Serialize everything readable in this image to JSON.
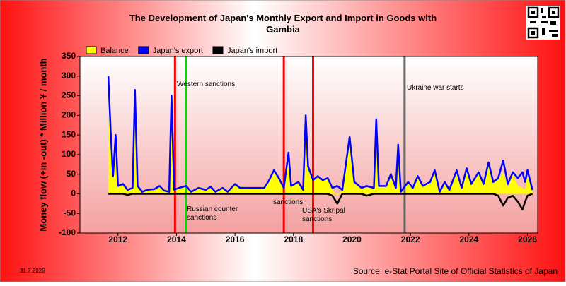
{
  "chart_data": {
    "type": "line",
    "title": "The Development of Japan's Monthly Export and Import in Goods with Gambia",
    "ylabel": "Money flow (+in -out) * Million ¥ / month",
    "date": "31.7.2026",
    "source": "Source: e-Stat Portal Site of Official Statistics of Japan",
    "xlim": [
      2010.7,
      2026.35
    ],
    "xticks": [
      2012,
      2014,
      2016,
      2018,
      2020,
      2022,
      2024,
      2026
    ],
    "ylim": [
      -100,
      350
    ],
    "yticks": [
      -100,
      -50,
      0,
      50,
      100,
      150,
      200,
      250,
      300,
      350
    ],
    "legend": "top-left",
    "x": [
      2011.67,
      2011.75,
      2011.83,
      2011.92,
      2012.0,
      2012.17,
      2012.33,
      2012.5,
      2012.58,
      2012.67,
      2012.83,
      2013.0,
      2013.25,
      2013.42,
      2013.58,
      2013.75,
      2013.83,
      2013.92,
      2014.08,
      2014.33,
      2014.5,
      2014.75,
      2015.0,
      2015.17,
      2015.33,
      2015.58,
      2015.75,
      2016.0,
      2016.17,
      2017.0,
      2017.17,
      2017.33,
      2017.5,
      2017.67,
      2017.83,
      2017.92,
      2018.17,
      2018.33,
      2018.42,
      2018.5,
      2018.67,
      2018.83,
      2019.0,
      2019.17,
      2019.33,
      2019.5,
      2019.67,
      2019.92,
      2020.08,
      2020.33,
      2020.5,
      2020.75,
      2020.83,
      2020.92,
      2021.17,
      2021.33,
      2021.5,
      2021.58,
      2021.67,
      2021.92,
      2022.08,
      2022.25,
      2022.42,
      2022.67,
      2022.83,
      2023.0,
      2023.17,
      2023.33,
      2023.58,
      2023.75,
      2023.92,
      2024.08,
      2024.33,
      2024.5,
      2024.67,
      2024.83,
      2025.0,
      2025.17,
      2025.33,
      2025.5,
      2025.67,
      2025.83,
      2025.92,
      2026.0,
      2026.17
    ],
    "series": [
      {
        "name": "Balance",
        "color": "#ffff00",
        "values": [
          300,
          160,
          45,
          150,
          20,
          25,
          7,
          15,
          265,
          20,
          5,
          10,
          12,
          20,
          8,
          5,
          250,
          10,
          15,
          20,
          5,
          15,
          10,
          18,
          5,
          15,
          5,
          25,
          15,
          15,
          35,
          60,
          40,
          15,
          105,
          20,
          30,
          10,
          200,
          70,
          35,
          45,
          35,
          40,
          10,
          -5,
          10,
          145,
          30,
          15,
          15,
          15,
          190,
          20,
          20,
          50,
          15,
          125,
          5,
          30,
          15,
          45,
          20,
          30,
          60,
          5,
          30,
          10,
          60,
          15,
          65,
          25,
          55,
          25,
          80,
          30,
          35,
          55,
          15,
          50,
          20,
          15,
          10,
          55,
          10
        ]
      },
      {
        "name": "Japan's export",
        "color": "#0000ff",
        "values": [
          300,
          160,
          45,
          150,
          20,
          25,
          10,
          15,
          265,
          20,
          5,
          10,
          12,
          20,
          8,
          5,
          250,
          10,
          15,
          20,
          5,
          15,
          10,
          18,
          5,
          15,
          5,
          25,
          15,
          15,
          35,
          60,
          40,
          15,
          105,
          20,
          30,
          10,
          200,
          70,
          35,
          45,
          35,
          40,
          15,
          20,
          10,
          145,
          30,
          15,
          20,
          15,
          190,
          20,
          20,
          50,
          15,
          125,
          5,
          30,
          15,
          45,
          20,
          30,
          60,
          5,
          30,
          10,
          60,
          15,
          65,
          25,
          55,
          25,
          80,
          30,
          40,
          85,
          25,
          55,
          40,
          55,
          30,
          60,
          10
        ]
      },
      {
        "name": "Japan's import",
        "color": "#000000",
        "values": [
          0,
          0,
          0,
          0,
          0,
          0,
          -3,
          0,
          0,
          0,
          0,
          0,
          0,
          0,
          0,
          0,
          0,
          0,
          0,
          0,
          0,
          0,
          0,
          0,
          0,
          0,
          0,
          0,
          0,
          0,
          0,
          0,
          0,
          0,
          0,
          0,
          0,
          0,
          0,
          0,
          0,
          0,
          0,
          0,
          -5,
          -25,
          0,
          0,
          0,
          0,
          -5,
          0,
          0,
          0,
          0,
          0,
          0,
          0,
          0,
          0,
          0,
          0,
          0,
          0,
          0,
          0,
          0,
          0,
          0,
          0,
          0,
          0,
          0,
          0,
          0,
          0,
          -5,
          -30,
          -10,
          -5,
          -20,
          -40,
          -20,
          -5,
          0
        ]
      }
    ],
    "events": [
      {
        "x": 2013.95,
        "color": "#ff0000"
      },
      {
        "x": 2014.32,
        "color": "#00dd00"
      },
      {
        "x": 2017.67,
        "color": "#ff0000"
      },
      {
        "x": 2018.67,
        "color": "#ff0000"
      },
      {
        "x": 2021.8,
        "color": "#666666"
      }
    ],
    "annotations": [
      "Western sanctions",
      "Russian counter sanctions",
      "sanctions",
      "USA's Skripal sanctions",
      "Ukraine war starts"
    ]
  }
}
